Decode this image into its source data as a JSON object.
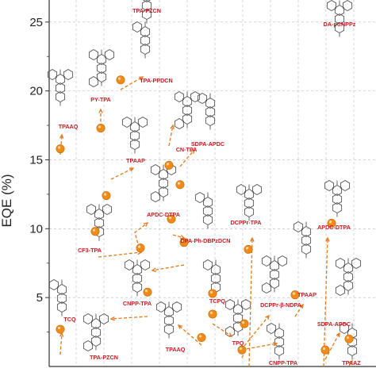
{
  "chart_data": {
    "type": "scatter",
    "title": "",
    "xlabel": "",
    "ylabel": "EQE (%)",
    "ylim": [
      0,
      26.6
    ],
    "yticks": [
      5,
      10,
      15,
      20,
      25
    ],
    "grid": "dashed vertical and horizontal",
    "marker_color": "#f08a18",
    "label_color": "#c8181e",
    "points": [
      {
        "label": "TCQ",
        "y": 2.7
      },
      {
        "label": "TPAAQ",
        "y": 15.8
      },
      {
        "label": "PY-TPA",
        "y": 17.3
      },
      {
        "label": "TPA-PPDCN",
        "y": 20.8
      },
      {
        "label": "TPAAP",
        "y": 12.4
      },
      {
        "label": "CN-TPA",
        "y": 14.6
      },
      {
        "label": "SDPA-APDC",
        "y": 13.2
      },
      {
        "label": "CF3-TPA",
        "y": 9.8
      },
      {
        "label": "APDC-DTPA",
        "y": 8.6
      },
      {
        "label": "DPA-Ph-DBPzDCN",
        "y": 10.7
      },
      {
        "label": "CNPP-TPA",
        "y": 9.0
      },
      {
        "label": "TPA-PZCN",
        "y": 5.4
      },
      {
        "label": "TCPQ",
        "y": 5.3
      },
      {
        "label": "TPAAQ",
        "y": 2.1
      },
      {
        "label": "TPQ",
        "y": 3.8
      },
      {
        "label": "CNPP-TPA",
        "y": 1.2
      },
      {
        "label": "DCPPr-TPA",
        "y": 8.5
      },
      {
        "label": "DCPPr-β-NDPA",
        "y": 3.1
      },
      {
        "label": "TPAAP",
        "y": 5.2
      },
      {
        "label": "APDC-DTPA",
        "y": 10.4
      },
      {
        "label": "SDPA-APDC",
        "y": 1.2
      },
      {
        "label": "TPAAZ",
        "y": 2.0
      }
    ]
  },
  "annotations": {
    "top_labels": [
      "TPA-PZCN",
      "DA-pCNPPz"
    ]
  }
}
